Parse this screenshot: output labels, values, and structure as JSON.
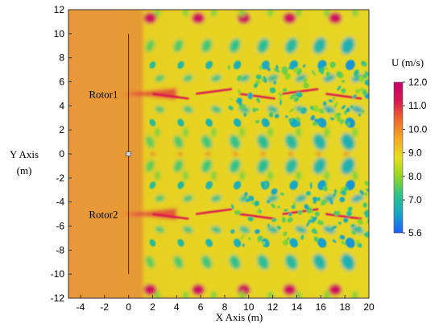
{
  "chart_data": {
    "type": "heatmap",
    "title": "",
    "xlabel": "X Axis  (m)",
    "ylabel_line1": "Y Axis",
    "ylabel_line2": "(m)",
    "xlim": [
      -5,
      20
    ],
    "ylim": [
      -12,
      12
    ],
    "x_ticks": [
      -4,
      -2,
      0,
      2,
      4,
      6,
      8,
      10,
      12,
      14,
      16,
      18,
      20
    ],
    "y_ticks": [
      12,
      10,
      8,
      6,
      4,
      2,
      0,
      -2,
      -4,
      -6,
      -8,
      -10,
      -12
    ],
    "colorbar": {
      "title": "U (m/s)",
      "min": 5.6,
      "max": 12.0,
      "ticks": [
        12.0,
        11.0,
        10.0,
        9.0,
        8.0,
        7.0,
        5.6
      ],
      "tick_labels": [
        "12.0",
        "11.0",
        "10.0",
        "9.0",
        "8.0",
        "7.0",
        "5.6"
      ],
      "colors": [
        "#1f5cff",
        "#17a6c8",
        "#2bc28a",
        "#93d622",
        "#e6df1e",
        "#f3a927",
        "#ee6a2a",
        "#d8184f",
        "#c8006e"
      ]
    },
    "annotations": [
      {
        "text": "Rotor1",
        "x": -3.3,
        "y": 5.0
      },
      {
        "text": "Rotor2",
        "x": -3.3,
        "y": -5.0
      }
    ],
    "rotor_disk": {
      "x": 0,
      "y_from": -10,
      "y_to": 10
    },
    "rotor_centers_y": [
      5,
      -5
    ],
    "freestream_speed": 9.8
  }
}
